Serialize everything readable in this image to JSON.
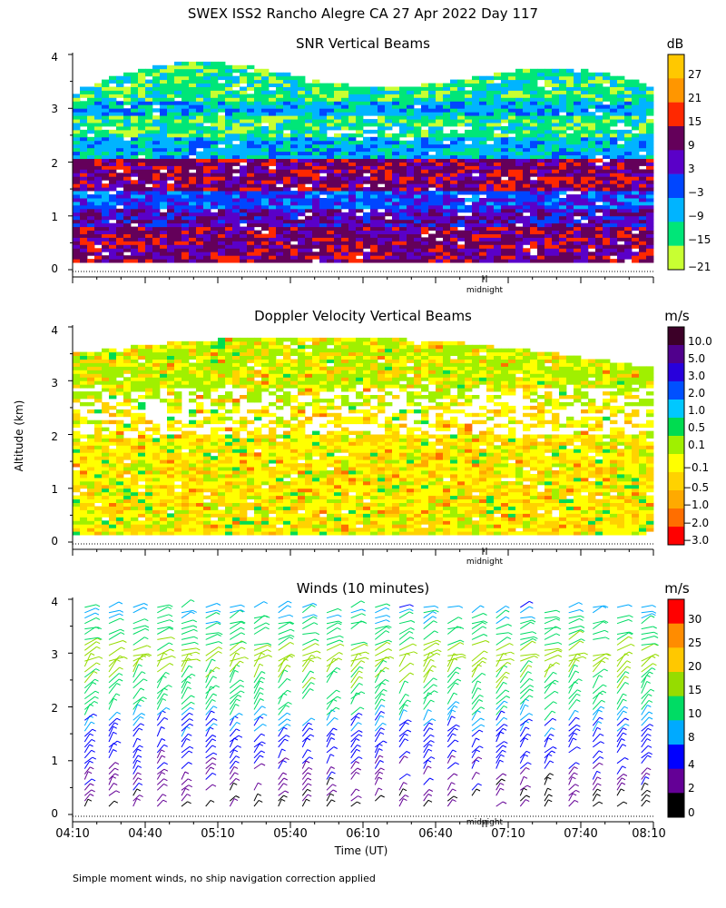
{
  "page": {
    "title": "SWEX ISS2 Rancho Alegre CA  27 Apr 2022 Day 117",
    "y_axis_label": "Altitude (km)",
    "footnote": "Simple moment winds, no ship navigation correction applied",
    "midnight_label": "midnight"
  },
  "chart_data": [
    {
      "type": "heatmap",
      "title": "SNR Vertical Beams",
      "ylabel": "Altitude (km)",
      "ylim": [
        0,
        4
      ],
      "yticks": [
        "0",
        "1",
        "2",
        "3",
        "4"
      ],
      "xlim_minutes": [
        0,
        240
      ],
      "colorbar": {
        "unit": "dB",
        "labels": [
          "27",
          "21",
          "15",
          "9",
          "3",
          "−3",
          "−9",
          "−15",
          "−21"
        ],
        "colors": [
          "#ffc800",
          "#ff9600",
          "#ff2800",
          "#64005a",
          "#5a00c8",
          "#0046ff",
          "#00b4ff",
          "#00e678",
          "#c8ff32"
        ]
      },
      "rows": [
        {
          "alt": 0.6,
          "cls": 3
        },
        {
          "alt": 1.0,
          "cls": 4
        },
        {
          "alt": 1.3,
          "cls": 5
        },
        {
          "alt": 1.6,
          "cls": 3
        },
        {
          "alt": 1.9,
          "cls": 3
        },
        {
          "alt": 2.2,
          "cls": 6
        },
        {
          "alt": 2.7,
          "cls": 7
        },
        {
          "alt": 3.0,
          "cls": 6
        },
        {
          "alt": 3.3,
          "cls": 7
        }
      ]
    },
    {
      "type": "heatmap",
      "title": "Doppler Velocity Vertical Beams",
      "ylabel": "Altitude (km)",
      "ylim": [
        0,
        4
      ],
      "yticks": [
        "0",
        "1",
        "2",
        "3",
        "4"
      ],
      "xlim_minutes": [
        0,
        240
      ],
      "colorbar": {
        "unit": "m/s",
        "labels": [
          "10.0",
          "5.0",
          "3.0",
          "2.0",
          "1.0",
          "0.5",
          "0.1",
          "−0.1",
          "−0.5",
          "−1.0",
          "−2.0",
          "−3.0"
        ],
        "colors": [
          "#3c0028",
          "#50008c",
          "#2800dc",
          "#0050ff",
          "#00c8ff",
          "#00dc50",
          "#a0f000",
          "#ffff00",
          "#ffd200",
          "#ffaa00",
          "#ff6e00",
          "#ff0000"
        ]
      },
      "dominant_range": [
        "−0.1",
        "−1.0"
      ]
    },
    {
      "type": "scatter",
      "title": "Winds (10 minutes)",
      "ylabel": "Altitude (km)",
      "xlabel": "Time (UT)",
      "ylim": [
        0,
        4
      ],
      "yticks": [
        "0",
        "1",
        "2",
        "3",
        "4"
      ],
      "xticks": [
        "04:10",
        "04:40",
        "05:10",
        "05:40",
        "06:10",
        "06:40",
        "07:10",
        "07:40",
        "08:10"
      ],
      "xlim_minutes": [
        0,
        240
      ],
      "interval_minutes": 10,
      "colorbar": {
        "unit": "m/s",
        "labels": [
          "30",
          "25",
          "20",
          "15",
          "10",
          "8",
          "4",
          "2",
          "0"
        ],
        "colors": [
          "#ff0000",
          "#ff8c00",
          "#ffc800",
          "#96dc00",
          "#00dc64",
          "#00aaff",
          "#0000ff",
          "#640096",
          "#000000"
        ]
      },
      "speed_profile": [
        {
          "alt": 0.2,
          "speed": 2
        },
        {
          "alt": 0.6,
          "speed": 3
        },
        {
          "alt": 1.0,
          "speed": 5
        },
        {
          "alt": 1.5,
          "speed": 7
        },
        {
          "alt": 1.8,
          "speed": 9
        },
        {
          "alt": 2.1,
          "speed": 12
        },
        {
          "alt": 2.5,
          "speed": 15
        },
        {
          "alt": 2.9,
          "speed": 18
        },
        {
          "alt": 3.3,
          "speed": 13
        },
        {
          "alt": 3.8,
          "speed": 9
        }
      ]
    }
  ]
}
